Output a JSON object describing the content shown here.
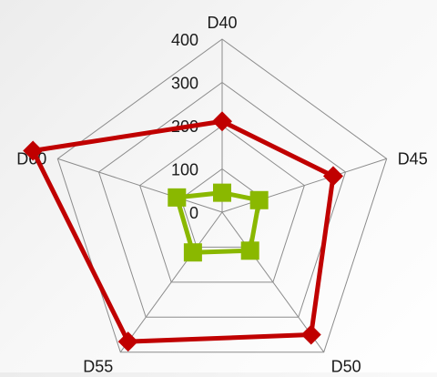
{
  "chart_data": {
    "type": "radar",
    "axes": [
      "D40",
      "D45",
      "D50",
      "D55",
      "D60"
    ],
    "r_ticks": [
      0,
      100,
      200,
      300,
      400
    ],
    "r_range": [
      0,
      400
    ],
    "grid": true,
    "legend": "none",
    "series": [
      {
        "values": [
          210,
          270,
          350,
          370,
          460
        ],
        "color": "#c00000",
        "marker": "diamond"
      },
      {
        "values": [
          45,
          90,
          110,
          115,
          110
        ],
        "color": "#8ab800",
        "marker": "square"
      }
    ]
  }
}
